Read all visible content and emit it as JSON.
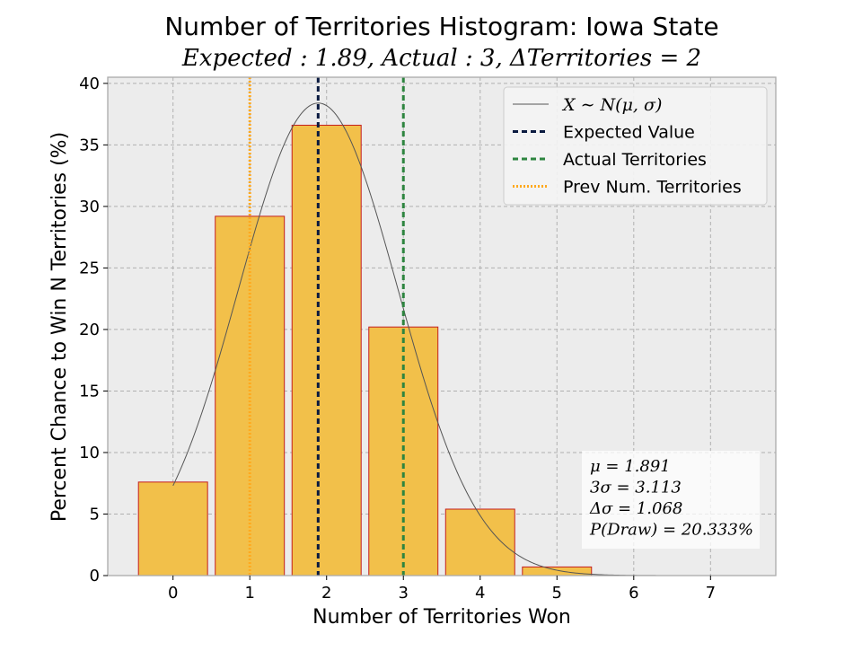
{
  "chart_data": {
    "type": "bar",
    "title": "Number of Territories Histogram: Iowa State",
    "subtitle": "Expected : 1.89, Actual : 3, ΔTerritories = 2",
    "xlabel": "Number of Territories Won",
    "ylabel": "Percent Chance to Win N Territories (%)",
    "categories": [
      0,
      1,
      2,
      3,
      4,
      5,
      6,
      7
    ],
    "values": [
      7.6,
      29.2,
      36.6,
      20.2,
      5.4,
      0.7,
      0.0,
      0.0
    ],
    "xlim": [
      -0.85,
      7.85
    ],
    "ylim": [
      0,
      40.5
    ],
    "xticks": [
      "0",
      "1",
      "2",
      "3",
      "4",
      "5",
      "6",
      "7"
    ],
    "yticks": [
      "0",
      "5",
      "10",
      "15",
      "20",
      "25",
      "30",
      "35",
      "40"
    ],
    "grid": true,
    "normal_curve": {
      "mu": 1.891,
      "sigma": 1.038,
      "peak_percent": 38.4,
      "x_range": [
        0,
        7
      ]
    },
    "vlines": [
      {
        "name": "Expected Value",
        "x": 1.89,
        "color": "#0a1a40",
        "style": "dashed"
      },
      {
        "name": "Actual Territories",
        "x": 3,
        "color": "#2e8540",
        "style": "dashed"
      },
      {
        "name": "Prev Num. Territories",
        "x": 1,
        "color": "#ffa91f",
        "style": "dotted"
      }
    ],
    "legend": {
      "placement": "top-right",
      "entries": [
        {
          "label": "X ∼ N(μ, σ)",
          "kind": "curve",
          "color": "#555555"
        },
        {
          "label": "Expected Value",
          "kind": "dashed",
          "color": "#0a1a40"
        },
        {
          "label": "Actual Territories",
          "kind": "dashed",
          "color": "#2e8540"
        },
        {
          "label": "Prev Num. Territories",
          "kind": "dotted",
          "color": "#ffa91f"
        }
      ]
    },
    "stats_box": {
      "placement": "bottom-right",
      "lines": [
        "μ = 1.891",
        "3σ = 3.113",
        "Δσ = 1.068",
        "P(Draw) = 20.333%"
      ]
    },
    "colors": {
      "bar_fill": "#f2c04a",
      "bar_edge": "#c41e1e",
      "plot_bg": "#ececec",
      "grid": "#b0b0b0",
      "curve": "#555555"
    }
  }
}
